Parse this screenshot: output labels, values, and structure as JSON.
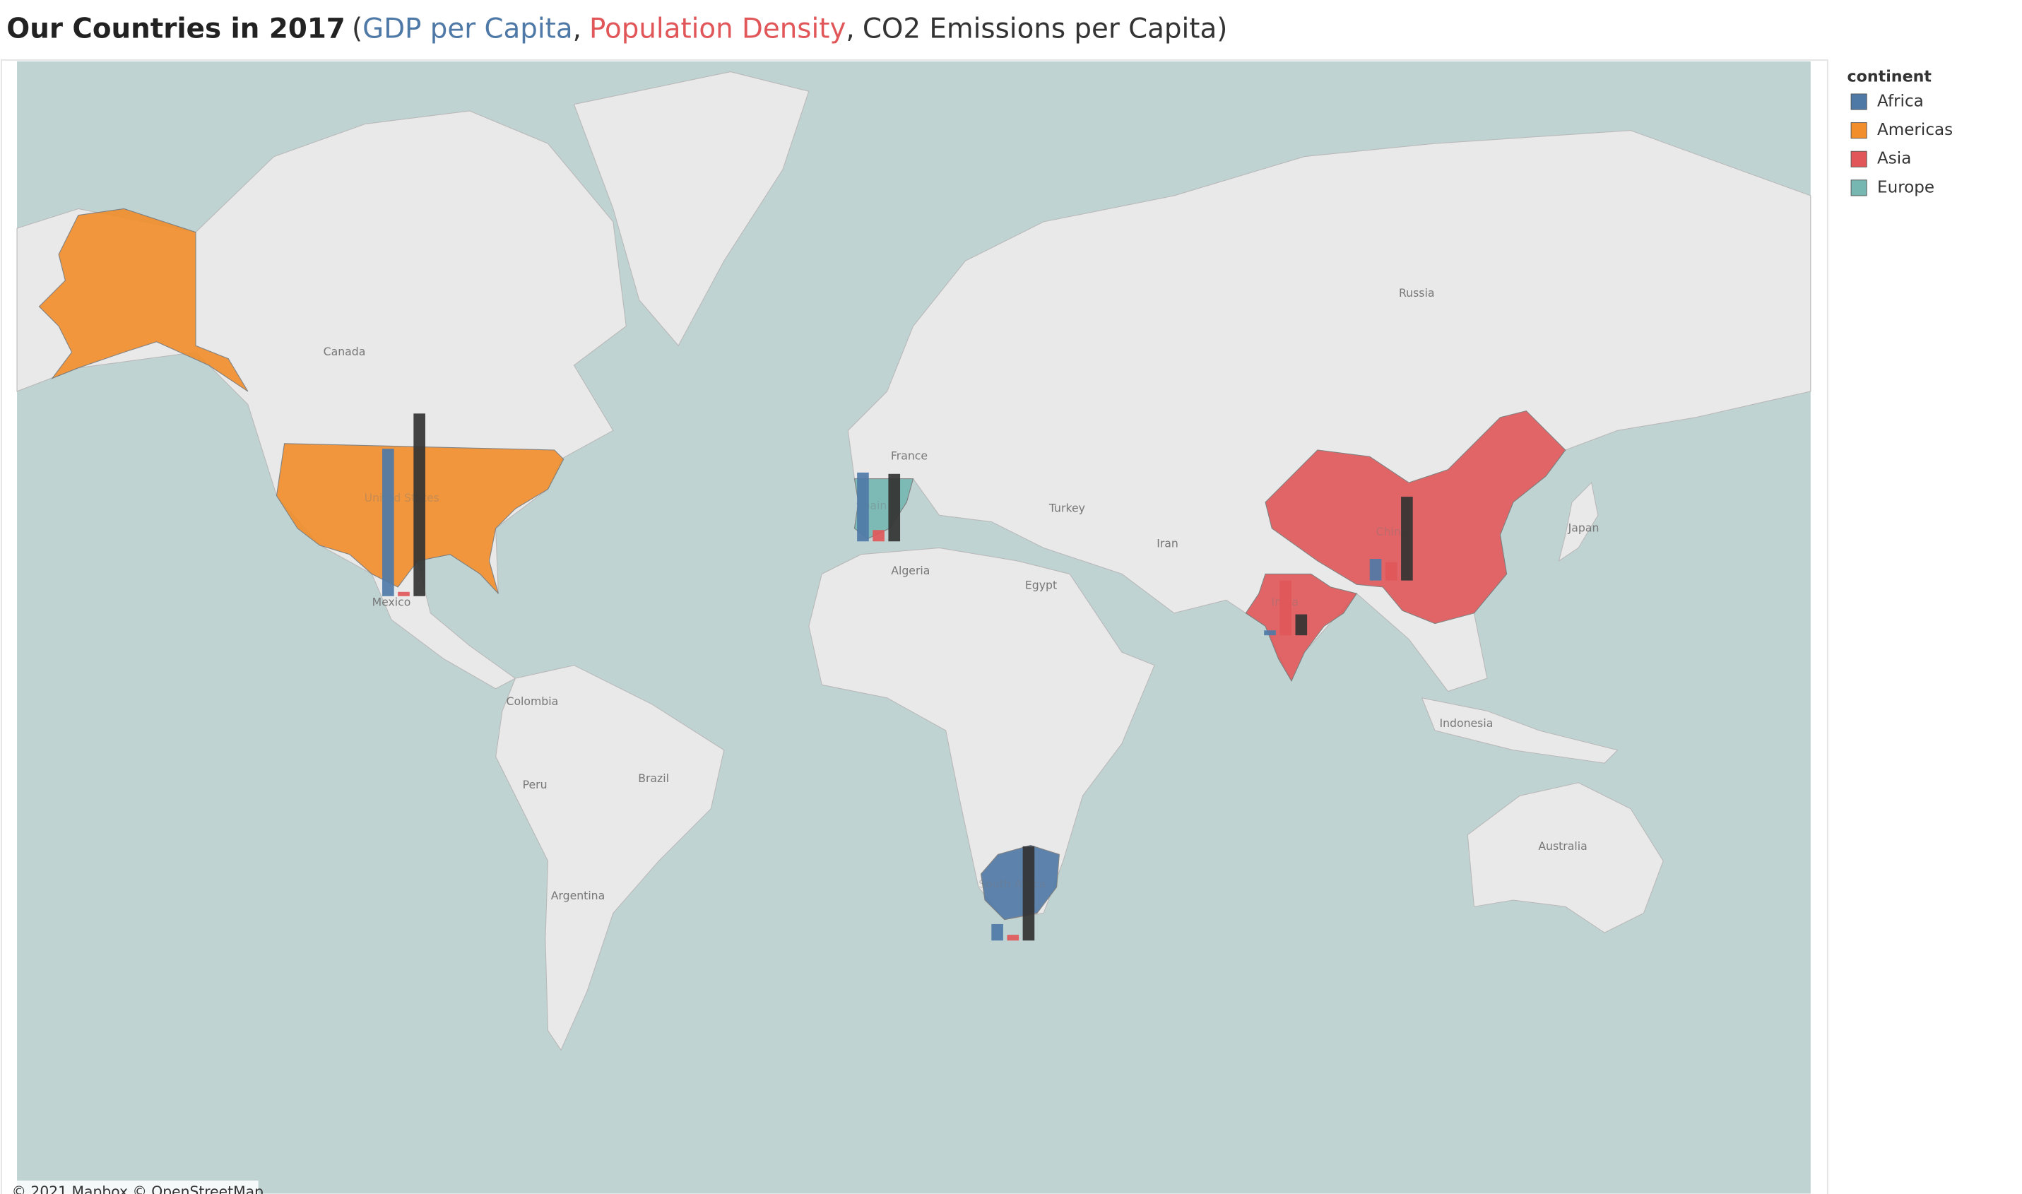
{
  "chart_data": {
    "type": "map-bars",
    "title": "Our Countries in 2017",
    "title_punctuation": [
      "(",
      ",",
      ",",
      ")"
    ],
    "categories": [
      "United States",
      "Spain",
      "India",
      "China",
      "South Africa"
    ],
    "continents": [
      "Americas",
      "Europe",
      "Asia",
      "Asia",
      "Africa"
    ],
    "series": [
      {
        "name": "GDP per Capita",
        "color": "#4e79a7",
        "values": [
          60000,
          28000,
          2000,
          8800,
          6700
        ]
      },
      {
        "name": "Population Density",
        "color": "#e15759",
        "values": [
          35,
          93,
          450,
          150,
          47
        ]
      },
      {
        "name": "CO2 Emissions per Capita",
        "color": "#333333",
        "values": [
          15.7,
          5.8,
          1.8,
          7.2,
          8.1
        ]
      }
    ],
    "legend": {
      "title": "continent",
      "items": [
        {
          "name": "Africa",
          "color": "#4e79a7"
        },
        {
          "name": "Americas",
          "color": "#f28e2b"
        },
        {
          "name": "Asia",
          "color": "#e15759"
        },
        {
          "name": "Europe",
          "color": "#76b7b2"
        }
      ]
    },
    "map_labels": [
      "Canada",
      "Russia",
      "France",
      "Turkey",
      "Iran",
      "Japan",
      "Algeria",
      "Egypt",
      "Mexico",
      "Colombia",
      "Brazil",
      "Peru",
      "Argentina",
      "Indonesia",
      "Australia"
    ],
    "attribution": "© 2021 Mapbox © OpenStreetMap"
  }
}
